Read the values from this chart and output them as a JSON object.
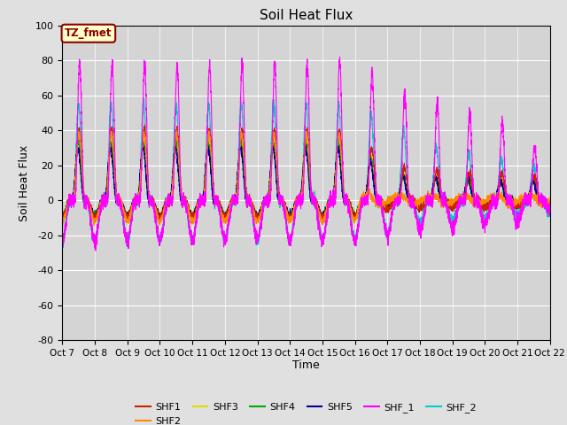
{
  "title": "Soil Heat Flux",
  "ylabel": "Soil Heat Flux",
  "xlabel": "Time",
  "ylim": [
    -80,
    100
  ],
  "background_color": "#e0e0e0",
  "plot_bg_color": "#d4d4d4",
  "annotation_text": "TZ_fmet",
  "annotation_bg": "#ffffcc",
  "annotation_border": "#8b0000",
  "series_colors": {
    "SHF1": "#cc2200",
    "SHF2": "#ff8800",
    "SHF3": "#dddd00",
    "SHF4": "#00aa00",
    "SHF5": "#000099",
    "SHF_1": "#ff00ff",
    "SHF_2": "#00cccc"
  },
  "n_days": 15,
  "pts_per_day": 288,
  "tick_labels": [
    "Oct 7",
    "Oct 8",
    "Oct 9",
    "Oct 10",
    "Oct 11",
    "Oct 12",
    "Oct 13",
    "Oct 14",
    "Oct 15",
    "Oct 16",
    "Oct 17",
    "Oct 18",
    "Oct 19",
    "Oct 20",
    "Oct 21",
    "Oct 22"
  ],
  "yticks": [
    -80,
    -60,
    -40,
    -20,
    0,
    20,
    40,
    60,
    80,
    100
  ]
}
